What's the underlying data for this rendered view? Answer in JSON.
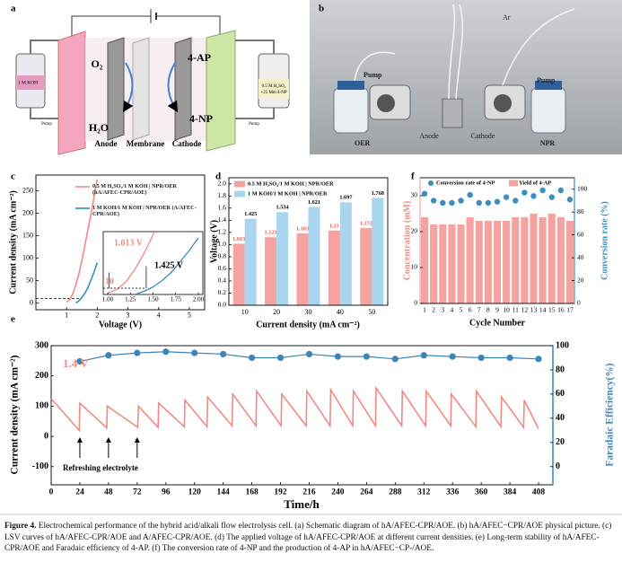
{
  "panel_labels": [
    "a",
    "b",
    "c",
    "d",
    "e",
    "f"
  ],
  "schematic": {
    "left_tank": "1 M KOH",
    "left_pump": "Pump",
    "o2": "O₂",
    "h2o": "H₂O",
    "anode": "Anode",
    "membrane": "Membrane",
    "cathode": "Cathode",
    "ap": "4-AP",
    "np": "4-NP",
    "right_tank": [
      "0.5 M H₂SO₄",
      "+25 Mm 4-NP"
    ],
    "right_pump": "Pump"
  },
  "photo": {
    "ar": "Ar",
    "pump_left": "Pump",
    "pump_right": "Pump",
    "oer": "OER",
    "anode": "Anode",
    "cathode": "Cathode",
    "npr": "NPR"
  },
  "chart_data": [
    {
      "type": "line",
      "xlabel": "Voltage (V)",
      "ylabel": "Current density (mA cm⁻²)",
      "xlim": [
        0,
        5.5
      ],
      "ylim": [
        -15,
        285
      ],
      "xticks": [
        1,
        2,
        3,
        4,
        5
      ],
      "yticks": [
        0,
        50,
        100,
        150,
        200,
        250
      ],
      "series": [
        {
          "name": "0.5 M H₂SO₄/1 M KOH | NPR/OER (hA/AFEC-CPR/AOE)",
          "color": "#f08a84",
          "x": [
            1.0,
            1.1,
            1.2,
            1.3,
            1.4,
            1.5,
            1.6,
            1.7,
            1.8,
            1.9,
            2.0
          ],
          "values": [
            2,
            8,
            20,
            40,
            65,
            95,
            130,
            165,
            200,
            238,
            275
          ]
        },
        {
          "name": "1 M KOH/1 M KOH | NPR/OER (A/AFEC-CPR/AOE)",
          "color": "#2f8fb8",
          "x": [
            1.3,
            1.4,
            1.5,
            1.6,
            1.7,
            1.8,
            1.9,
            2.0
          ],
          "values": [
            0,
            5,
            12,
            22,
            35,
            52,
            70,
            90
          ]
        }
      ],
      "inset": {
        "xlim": [
          0.95,
          2.05
        ],
        "ylim": [
          0,
          100
        ],
        "xticks": [
          {
            "value": 1,
            "label": "1.00"
          },
          1.25,
          {
            "value": 1.5,
            "label": "1.50"
          },
          1.75,
          {
            "value": 2,
            "label": "2.00"
          }
        ],
        "annotations": [
          "1.013 V",
          "1.425 V",
          "10"
        ]
      }
    },
    {
      "type": "bar",
      "xlabel": "Current density (mA cm⁻²)",
      "ylabel": "Voltage (V)",
      "categories": [
        "10",
        "20",
        "30",
        "40",
        "50"
      ],
      "ylim": [
        0,
        2.1
      ],
      "yticks": [
        {
          "value": 0,
          "label": "0.0"
        },
        0.2,
        0.4,
        0.6,
        0.8,
        {
          "value": 1,
          "label": "1.0"
        },
        1.2,
        1.4,
        1.6,
        1.8,
        {
          "value": 2,
          "label": "2.0"
        }
      ],
      "series": [
        {
          "name": "0.5 M H₂SO₄/1 M KOH | NPR/OER",
          "color": "#f4a3a0",
          "values": [
            1.013,
            1.121,
            1.183,
            1.23,
            1.272
          ]
        },
        {
          "name": "1 M KOH/1 M KOH | NPR/OER",
          "color": "#a9d5ee",
          "values": [
            1.425,
            1.534,
            1.621,
            1.697,
            1.768
          ]
        }
      ]
    },
    {
      "type": "bar",
      "xlabel": "Cycle Number",
      "ylabel": "Concentration (mM)",
      "y2label": "Conversion rate (%)",
      "categories": [
        "1",
        "2",
        "3",
        "4",
        "5",
        "6",
        "7",
        "8",
        "9",
        "10",
        "11",
        "12",
        "13",
        "14",
        "15",
        "16",
        "17"
      ],
      "ylim": [
        0,
        35
      ],
      "yticks": [
        0,
        10,
        20,
        30
      ],
      "y2lim": [
        0,
        110
      ],
      "y2ticks": [
        0,
        20,
        40,
        60,
        80,
        100
      ],
      "series": [
        {
          "name": "Conversion rate of 4-NP",
          "color": "#3a8fc0",
          "axis": "y2",
          "type": "scatter",
          "values": [
            96,
            90,
            88,
            88,
            90,
            95,
            88,
            88,
            89,
            93,
            90,
            97,
            94,
            99,
            93,
            99,
            91
          ]
        },
        {
          "name": "Yield of 4-AP",
          "color": "#f4a3a0",
          "values": [
            24,
            22,
            22,
            22,
            22,
            24,
            23,
            23,
            23,
            23,
            24,
            24,
            25,
            24,
            25,
            24,
            23
          ]
        }
      ]
    },
    {
      "type": "line",
      "xlabel": "Time/h",
      "ylabel": "Current density (mA cm⁻²)",
      "y2label": "Faradaic Efficiency(%)",
      "xlim": [
        0,
        420
      ],
      "ylim": [
        -160,
        300
      ],
      "y2lim": [
        -15,
        100
      ],
      "xticks": [
        0,
        24,
        48,
        72,
        96,
        120,
        144,
        168,
        192,
        216,
        240,
        264,
        288,
        312,
        336,
        360,
        384,
        408
      ],
      "yticks": [
        -100,
        0,
        100,
        200,
        300
      ],
      "y2ticks": [
        0,
        20,
        40,
        60,
        80,
        100
      ],
      "series": [
        {
          "color": "#f08a84",
          "x": [
            0,
            23.5,
            24,
            46.5,
            47,
            72.5,
            73,
            89.5,
            90,
            111.5,
            112,
            130.5,
            131,
            151.5,
            152,
            171.5,
            172,
            192.5,
            193,
            213.5,
            214,
            233.5,
            234,
            252.5,
            253,
            271.5,
            272,
            293.5,
            294,
            313.5,
            314,
            334.5,
            335,
            355.5,
            356,
            376.5,
            377,
            395.5,
            396,
            408
          ],
          "values": [
            125,
            20,
            110,
            28,
            100,
            30,
            100,
            30,
            110,
            32,
            120,
            32,
            130,
            35,
            140,
            35,
            150,
            35,
            140,
            35,
            150,
            35,
            155,
            35,
            150,
            35,
            160,
            35,
            150,
            35,
            150,
            35,
            140,
            32,
            150,
            32,
            130,
            30,
            120,
            25
          ]
        },
        {
          "color": "#3a86b8",
          "axis": "y2",
          "markers": true,
          "x": [
            24,
            48,
            72,
            96,
            120,
            144,
            168,
            192,
            216,
            240,
            264,
            288,
            312,
            336,
            360,
            384,
            408
          ],
          "values": [
            87,
            92,
            94,
            95,
            94,
            93,
            90,
            90,
            93,
            91,
            91,
            89,
            92,
            91,
            90,
            90,
            89
          ]
        }
      ],
      "annotations": {
        "voltage": "1.4 V",
        "refresh": "Refreshing electrolyte",
        "refresh_times": [
          24,
          48,
          72
        ]
      }
    }
  ],
  "caption": {
    "label": "Figure 4.",
    "text": "Electrochemical performance of the hybrid acid/alkali flow electrolysis cell. (a) Schematic diagram of hA/AFEC-CPR/AOE. (b) hA/AFEC−CPR/AOE physical picture. (c) LSV curves of hA/AFEC-CPR/AOE and A/AFEC-CPR/AOE. (d) The applied voltage of hA/AFEC-CPR/AOE at different current densities. (e) Long-term stability of hA/AFEC-CPR/AOE and Faradaic efficiency of 4-AP. (f) The conversion rate of 4-NP and the production of 4-AP in hA/AFEC−CP-/AOE."
  }
}
